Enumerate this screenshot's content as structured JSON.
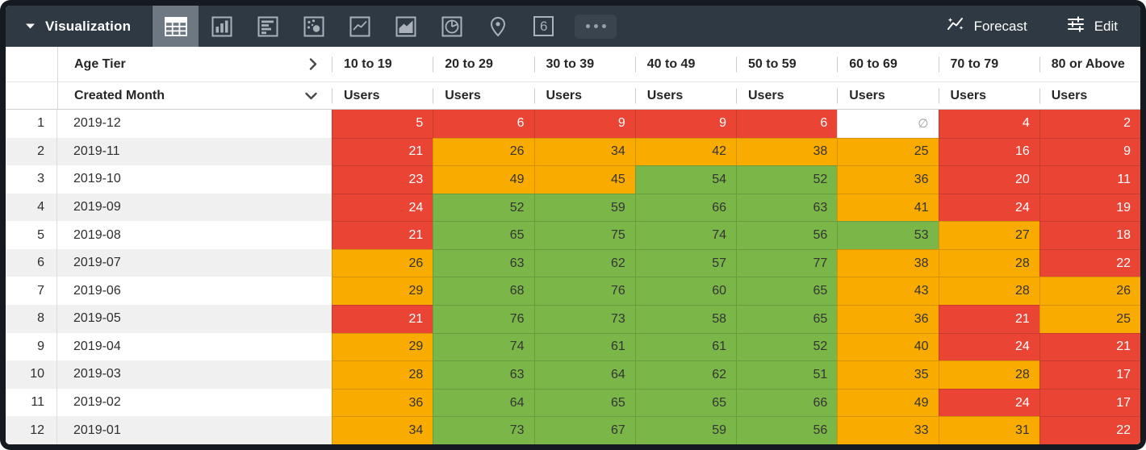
{
  "topbar": {
    "title": "Visualization",
    "viz_types": [
      {
        "name": "table",
        "selected": true
      },
      {
        "name": "column-chart",
        "selected": false
      },
      {
        "name": "bar-chart",
        "selected": false
      },
      {
        "name": "scatter-plot",
        "selected": false
      },
      {
        "name": "line-chart",
        "selected": false
      },
      {
        "name": "area-chart",
        "selected": false
      },
      {
        "name": "pie-chart",
        "selected": false
      },
      {
        "name": "map",
        "selected": false
      },
      {
        "name": "single-value",
        "selected": false
      },
      {
        "name": "more-options",
        "selected": false
      }
    ],
    "single_value_glyph": "6",
    "forecast_label": "Forecast",
    "edit_label": "Edit"
  },
  "table": {
    "pivot_field_label": "Age Tier",
    "row_field_label": "Created Month",
    "measure_label": "Users",
    "columns": [
      "10 to 19",
      "20 to 29",
      "30 to 39",
      "40 to 49",
      "50 to 59",
      "60 to 69",
      "70 to 79",
      "80 or Above"
    ],
    "rows": [
      {
        "num": "1",
        "month": "2019-12",
        "values": [
          5,
          6,
          9,
          9,
          6,
          null,
          4,
          2
        ]
      },
      {
        "num": "2",
        "month": "2019-11",
        "values": [
          21,
          26,
          34,
          42,
          38,
          25,
          16,
          9
        ]
      },
      {
        "num": "3",
        "month": "2019-10",
        "values": [
          23,
          49,
          45,
          54,
          52,
          36,
          20,
          11
        ]
      },
      {
        "num": "4",
        "month": "2019-09",
        "values": [
          24,
          52,
          59,
          66,
          63,
          41,
          24,
          19
        ]
      },
      {
        "num": "5",
        "month": "2019-08",
        "values": [
          21,
          65,
          75,
          74,
          56,
          53,
          27,
          18
        ]
      },
      {
        "num": "6",
        "month": "2019-07",
        "values": [
          26,
          63,
          62,
          57,
          77,
          38,
          28,
          22
        ]
      },
      {
        "num": "7",
        "month": "2019-06",
        "values": [
          29,
          68,
          76,
          60,
          65,
          43,
          28,
          26
        ]
      },
      {
        "num": "8",
        "month": "2019-05",
        "values": [
          21,
          76,
          73,
          58,
          65,
          36,
          21,
          25
        ]
      },
      {
        "num": "9",
        "month": "2019-04",
        "values": [
          29,
          74,
          61,
          61,
          52,
          40,
          24,
          21
        ]
      },
      {
        "num": "10",
        "month": "2019-03",
        "values": [
          28,
          63,
          64,
          62,
          51,
          35,
          28,
          17
        ]
      },
      {
        "num": "11",
        "month": "2019-02",
        "values": [
          36,
          64,
          65,
          65,
          66,
          49,
          24,
          17
        ]
      },
      {
        "num": "12",
        "month": "2019-01",
        "values": [
          34,
          73,
          67,
          59,
          56,
          33,
          31,
          22
        ]
      }
    ],
    "null_symbol": "∅",
    "conditional_format": {
      "low_color": "#ea4435",
      "mid_color": "#f9ab00",
      "high_color": "#7ab648",
      "low_text": "#ffffff",
      "dark_text": "#343434",
      "low_max": 24,
      "high_min": 50
    }
  }
}
